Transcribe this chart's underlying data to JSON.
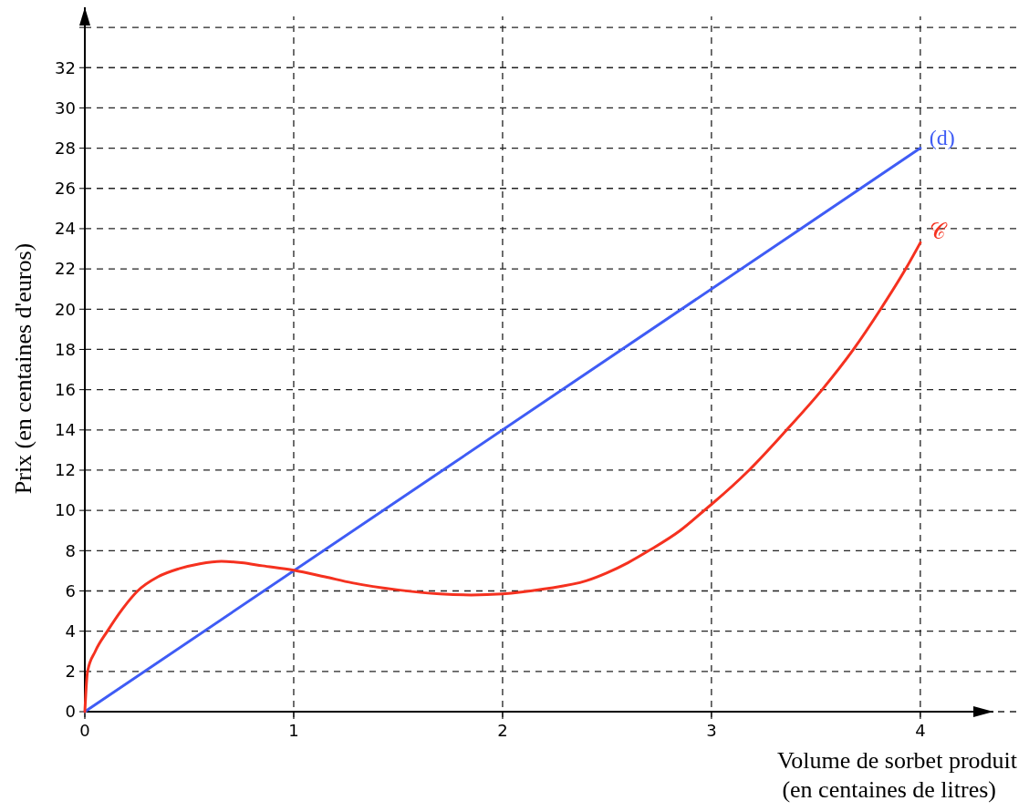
{
  "chart_data": {
    "type": "line",
    "xlabel": "Volume de sorbet produit\n(en centaines de litres)",
    "ylabel": "Prix (en centaines d'euros)",
    "xlim": [
      0,
      4.35
    ],
    "ylim": [
      0,
      35
    ],
    "xticks": [
      0,
      1,
      2,
      3,
      4
    ],
    "yticks": [
      0,
      2,
      4,
      6,
      8,
      10,
      12,
      14,
      16,
      18,
      20,
      22,
      24,
      26,
      28,
      30,
      32,
      {
        "value": 34,
        "label": null
      }
    ],
    "grid": true,
    "marker": "none",
    "series": [
      {
        "name": "(d)",
        "color": "#3f5cf5",
        "x": [
          0,
          4
        ],
        "values": [
          0,
          28
        ]
      },
      {
        "name": "𝒞",
        "color": "#f5311f",
        "x": [
          0,
          0.013,
          0.05,
          0.108,
          0.18,
          0.253,
          0.35,
          0.45,
          0.55,
          0.654,
          0.75,
          0.85,
          1,
          1.15,
          1.28,
          1.5,
          1.7,
          1.85,
          2,
          2.2,
          2.4,
          2.5,
          2.6,
          2.7,
          2.85,
          2.96,
          3,
          3.18,
          3.36,
          3.53,
          3.68,
          3.81,
          3.93,
          4
        ],
        "values": [
          0,
          2,
          3,
          4,
          5.1,
          6,
          6.7,
          7.1,
          7.35,
          7.47,
          7.4,
          7.25,
          7.03,
          6.7,
          6.4,
          6.05,
          5.85,
          5.8,
          5.85,
          6.1,
          6.5,
          6.9,
          7.4,
          8,
          9,
          9.95,
          10.3,
          12,
          14,
          16,
          18,
          20,
          22,
          23.3
        ]
      }
    ]
  }
}
